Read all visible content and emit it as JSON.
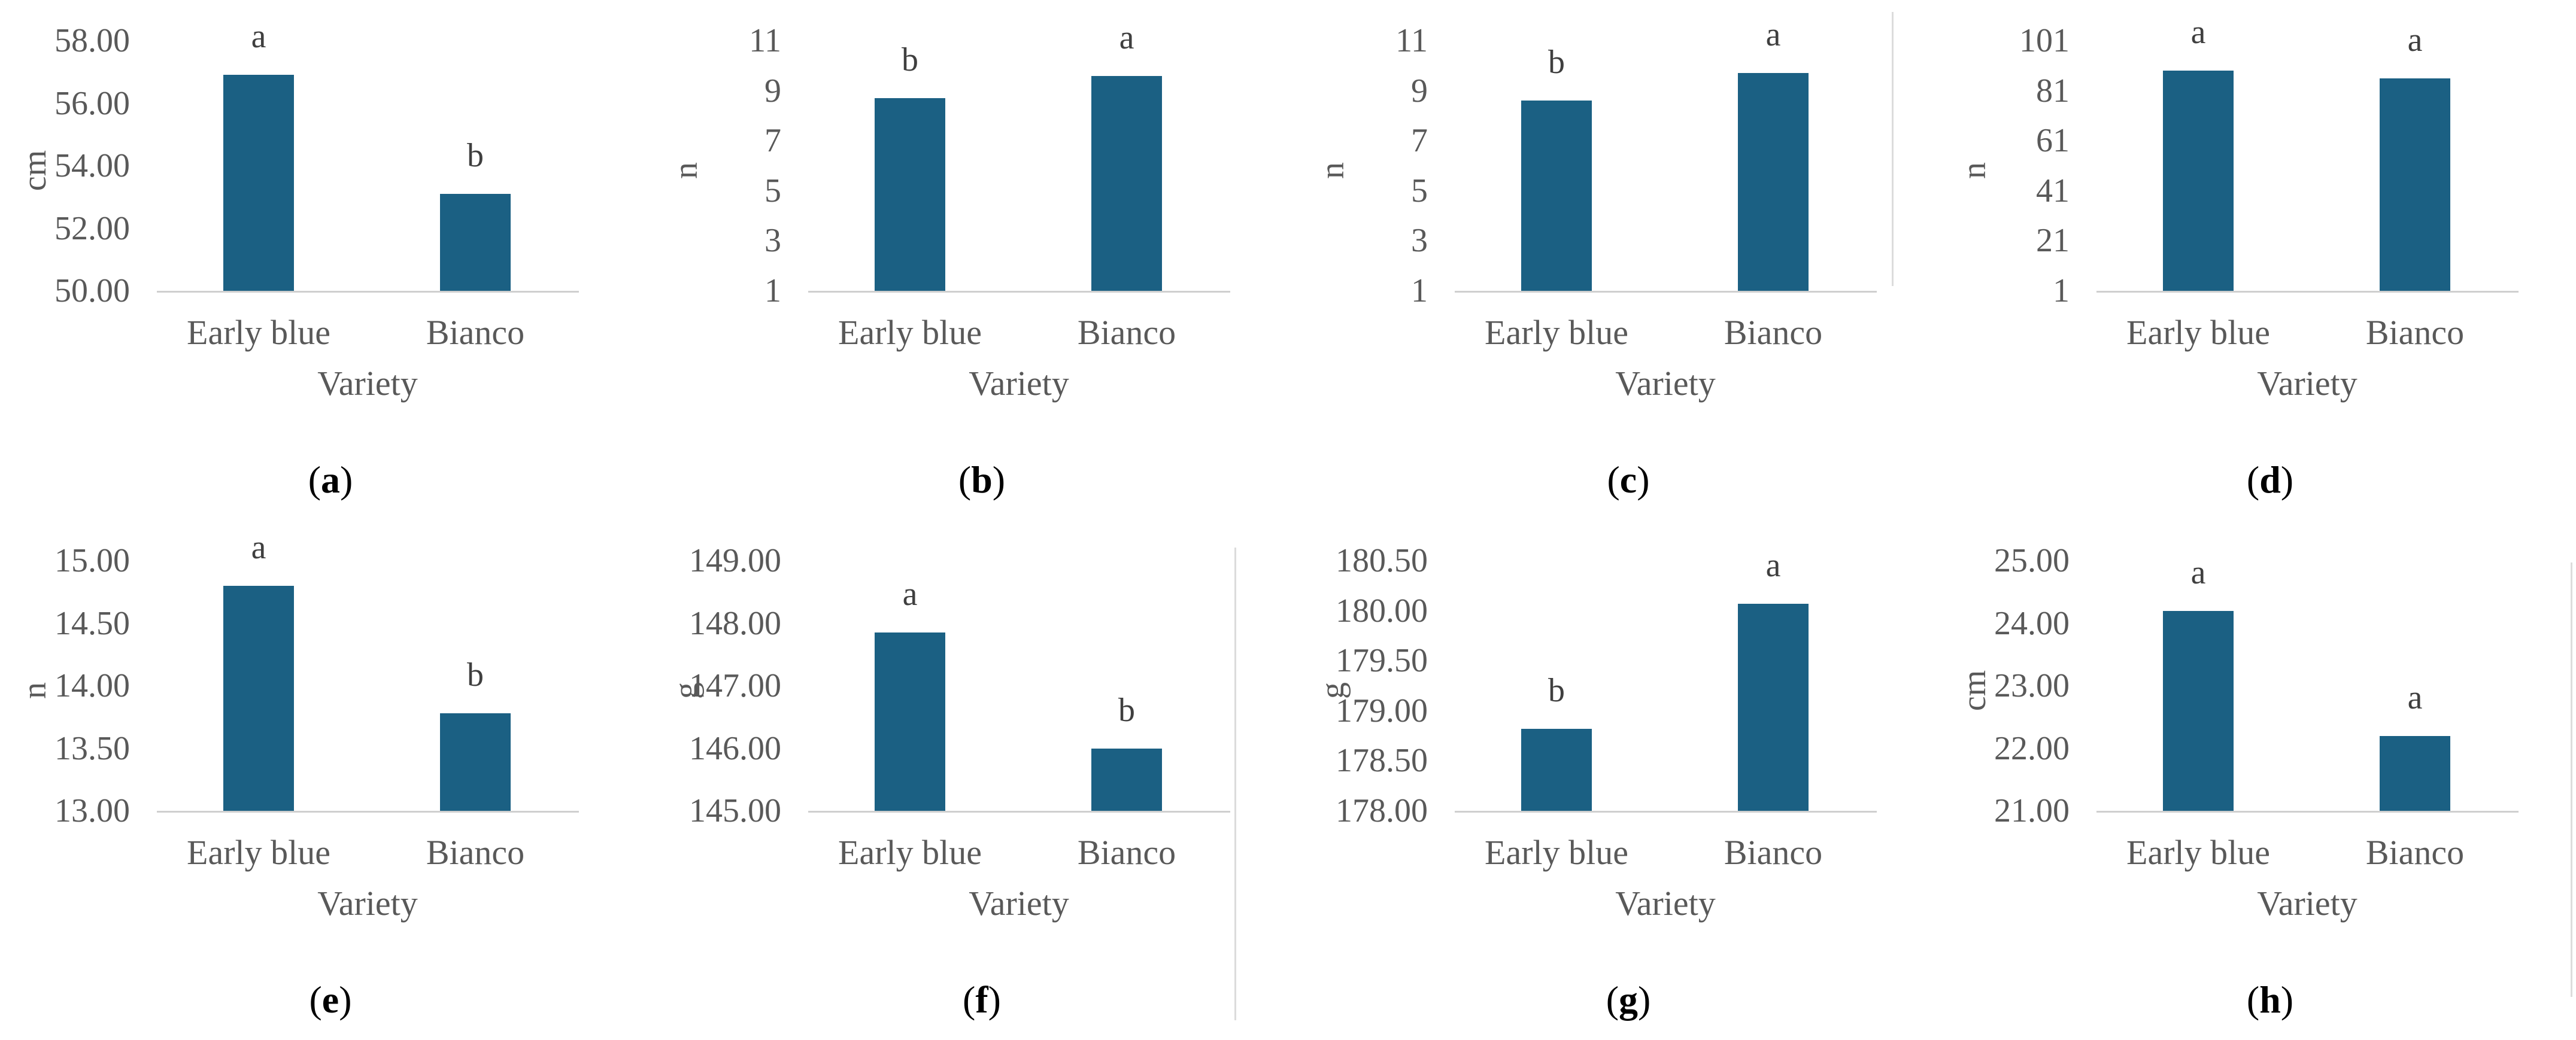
{
  "figure": {
    "x_axis_title": "Variety",
    "categories": [
      "Early blue",
      "Bianco"
    ],
    "paren_open": "(",
    "paren_close": ")",
    "colors": {
      "bar": "#1b6083",
      "axis_text": "#595959",
      "significance_text": "#3f3f3f",
      "baseline_line": "#cfcfcf",
      "divider_line": "#dcdcdc",
      "caption_text": "#000000",
      "background": "#ffffff"
    }
  },
  "chart_data": [
    {
      "type": "bar",
      "panel_letter": "a",
      "categories": [
        "Early blue",
        "Bianco"
      ],
      "values": [
        56.9,
        53.1
      ],
      "sig_letters": [
        "a",
        "b"
      ],
      "ylabel": "cm",
      "xlabel": "Variety",
      "ylim": [
        50,
        58
      ],
      "ytick_values": [
        50,
        52,
        54,
        56,
        58
      ],
      "ytick_labels": [
        "50.00",
        "52.00",
        "54.00",
        "56.00",
        "58.00"
      ],
      "grid": false,
      "legend": false
    },
    {
      "type": "bar",
      "panel_letter": "b",
      "categories": [
        "Early blue",
        "Bianco"
      ],
      "values": [
        8.7,
        9.6
      ],
      "sig_letters": [
        "b",
        "a"
      ],
      "ylabel": "n",
      "xlabel": "Variety",
      "ylim": [
        1,
        11
      ],
      "ytick_values": [
        1,
        3,
        5,
        7,
        9,
        11
      ],
      "ytick_labels": [
        "1",
        "3",
        "5",
        "7",
        "9",
        "11"
      ],
      "grid": false,
      "legend": false
    },
    {
      "type": "bar",
      "panel_letter": "c",
      "categories": [
        "Early blue",
        "Bianco"
      ],
      "values": [
        8.6,
        9.7
      ],
      "sig_letters": [
        "b",
        "a"
      ],
      "ylabel": "n",
      "xlabel": "Variety",
      "ylim": [
        1,
        11
      ],
      "ytick_values": [
        1,
        3,
        5,
        7,
        9,
        11
      ],
      "ytick_labels": [
        "1",
        "3",
        "5",
        "7",
        "9",
        "11"
      ],
      "grid": false,
      "legend": false
    },
    {
      "type": "bar",
      "panel_letter": "d",
      "categories": [
        "Early blue",
        "Bianco"
      ],
      "values": [
        89,
        86
      ],
      "sig_letters": [
        "a",
        "a"
      ],
      "ylabel": "n",
      "xlabel": "Variety",
      "ylim": [
        1,
        101
      ],
      "ytick_values": [
        1,
        21,
        41,
        61,
        81,
        101
      ],
      "ytick_labels": [
        "1",
        "21",
        "41",
        "61",
        "81",
        "101"
      ],
      "grid": false,
      "legend": false
    },
    {
      "type": "bar",
      "panel_letter": "e",
      "categories": [
        "Early blue",
        "Bianco"
      ],
      "values": [
        14.8,
        13.78
      ],
      "sig_letters": [
        "a",
        "b"
      ],
      "ylabel": "n",
      "xlabel": "Variety",
      "ylim": [
        13,
        15
      ],
      "ytick_values": [
        13,
        13.5,
        14,
        14.5,
        15
      ],
      "ytick_labels": [
        "13.00",
        "13.50",
        "14.00",
        "14.50",
        "15.00"
      ],
      "grid": false,
      "legend": false
    },
    {
      "type": "bar",
      "panel_letter": "f",
      "categories": [
        "Early blue",
        "Bianco"
      ],
      "values": [
        147.85,
        146.0
      ],
      "sig_letters": [
        "a",
        "b"
      ],
      "ylabel": "g",
      "xlabel": "Variety",
      "ylim": [
        145,
        149
      ],
      "ytick_values": [
        145,
        146,
        147,
        148,
        149
      ],
      "ytick_labels": [
        "145.00",
        "146.00",
        "147.00",
        "148.00",
        "149.00"
      ],
      "grid": false,
      "legend": false
    },
    {
      "type": "bar",
      "panel_letter": "g",
      "categories": [
        "Early blue",
        "Bianco"
      ],
      "values": [
        178.82,
        180.07
      ],
      "sig_letters": [
        "b",
        "a"
      ],
      "ylabel": "g",
      "xlabel": "Variety",
      "ylim": [
        178,
        180.5
      ],
      "ytick_values": [
        178,
        178.5,
        179,
        179.5,
        180,
        180.5
      ],
      "ytick_labels": [
        "178.00",
        "178.50",
        "179.00",
        "179.50",
        "180.00",
        "180.50"
      ],
      "grid": false,
      "legend": false
    },
    {
      "type": "bar",
      "panel_letter": "h",
      "categories": [
        "Early blue",
        "Bianco"
      ],
      "values": [
        24.2,
        22.2
      ],
      "sig_letters": [
        "a",
        "a"
      ],
      "ylabel": "cm",
      "xlabel": "Variety",
      "ylim": [
        21,
        25
      ],
      "ytick_values": [
        21,
        22,
        23,
        24,
        25
      ],
      "ytick_labels": [
        "21.00",
        "22.00",
        "23.00",
        "24.00",
        "25.00"
      ],
      "grid": false,
      "legend": false
    }
  ]
}
